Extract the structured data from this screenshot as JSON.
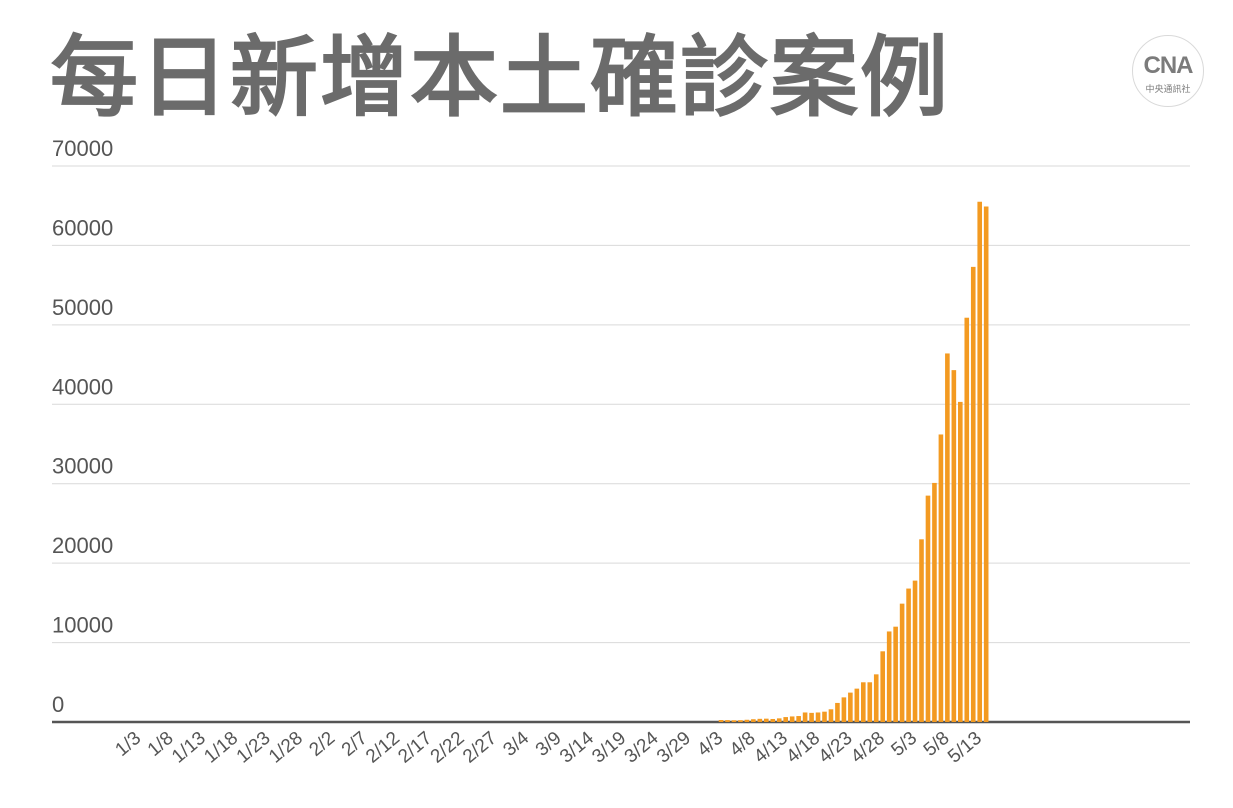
{
  "title": "每日新增本土確診案例",
  "logo": {
    "mark": "CNA",
    "text": "中央通訊社"
  },
  "colors": {
    "bar": "#f39a21",
    "title": "#6b6b6b",
    "grid": "#d9d9d9",
    "axis": "#555555"
  },
  "chart_data": {
    "type": "bar",
    "title": "每日新增本土確診案例",
    "ylim": [
      0,
      70000
    ],
    "yticks": [
      0,
      10000,
      20000,
      30000,
      40000,
      50000,
      60000,
      70000
    ],
    "grid": true,
    "tick_labels": [
      "1/3",
      "1/8",
      "1/13",
      "1/18",
      "1/23",
      "1/28",
      "2/2",
      "2/7",
      "2/12",
      "2/17",
      "2/22",
      "2/27",
      "3/4",
      "3/9",
      "3/14",
      "3/19",
      "3/24",
      "3/29",
      "4/3",
      "4/8",
      "4/13",
      "4/18",
      "4/23",
      "4/28",
      "5/3",
      "5/8",
      "5/13"
    ],
    "categories": [
      "4/3",
      "4/4",
      "4/5",
      "4/6",
      "4/7",
      "4/8",
      "4/9",
      "4/10",
      "4/11",
      "4/12",
      "4/13",
      "4/14",
      "4/15",
      "4/16",
      "4/17",
      "4/18",
      "4/19",
      "4/20",
      "4/21",
      "4/22",
      "4/23",
      "4/24",
      "4/25",
      "4/26",
      "4/27",
      "4/28",
      "4/29",
      "4/30",
      "5/1",
      "5/2",
      "5/3",
      "5/4",
      "5/5",
      "5/6",
      "5/7",
      "5/8",
      "5/9",
      "5/10",
      "5/11",
      "5/12",
      "5/13",
      "5/14"
    ],
    "values": [
      250,
      240,
      220,
      230,
      280,
      350,
      400,
      420,
      380,
      460,
      620,
      700,
      750,
      1200,
      1150,
      1200,
      1300,
      1600,
      2400,
      3100,
      3700,
      4200,
      5000,
      5000,
      6000,
      8900,
      11400,
      12000,
      14900,
      16800,
      17800,
      23000,
      28500,
      30100,
      36200,
      46400,
      44300,
      40300,
      50900,
      57300,
      65500,
      64900
    ]
  }
}
